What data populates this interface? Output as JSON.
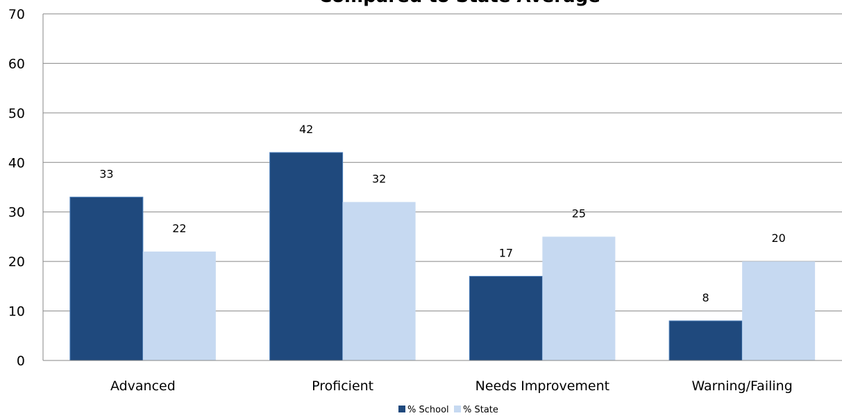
{
  "chart_data": {
    "type": "bar",
    "title": "Compared to State Average",
    "xlabel": "",
    "ylabel": "",
    "ylim": [
      0,
      70
    ],
    "yticks": [
      0,
      10,
      20,
      30,
      40,
      50,
      60,
      70
    ],
    "grid": true,
    "legend_position": "bottom",
    "categories": [
      "Advanced",
      "Proficient",
      "Needs Improvement",
      "Warning/Failing"
    ],
    "series": [
      {
        "name": "% School",
        "color": "#1f497d",
        "values": [
          33,
          42,
          17,
          8
        ]
      },
      {
        "name": "% State",
        "color": "#c6d9f1",
        "values": [
          22,
          32,
          25,
          20
        ]
      }
    ]
  }
}
